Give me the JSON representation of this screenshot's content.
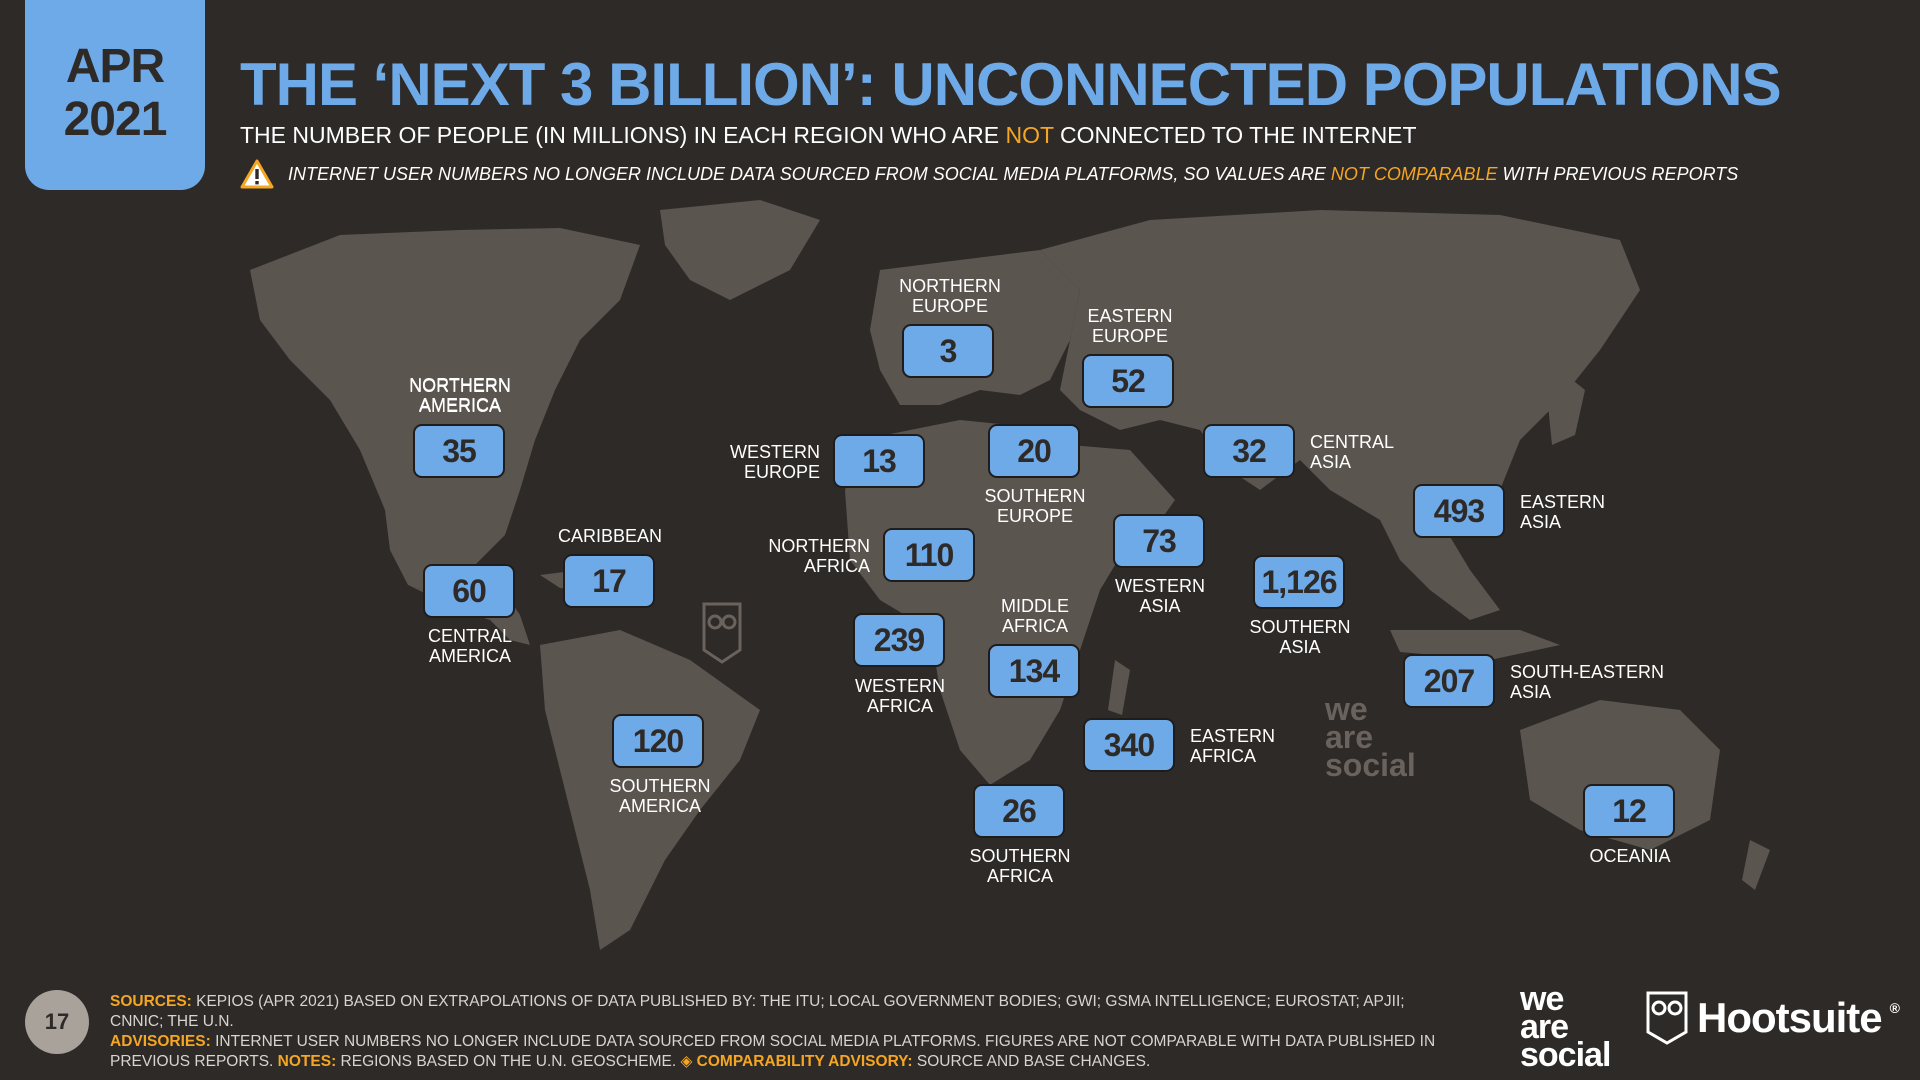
{
  "badge": {
    "month": "APR",
    "year": "2021"
  },
  "title": "THE ‘NEXT 3 BILLION’: UNCONNECTED POPULATIONS",
  "subtitle": {
    "before": "THE NUMBER OF PEOPLE (IN MILLIONS) IN EACH REGION WHO ARE ",
    "highlight": "NOT",
    "after": " CONNECTED TO THE INTERNET"
  },
  "warning": {
    "icon": "warning-triangle-icon",
    "before": "INTERNET USER NUMBERS NO LONGER INCLUDE DATA SOURCED FROM SOCIAL MEDIA PLATFORMS, SO VALUES ARE ",
    "highlight": "NOT COMPARABLE",
    "after": " WITH PREVIOUS REPORTS"
  },
  "regions": {
    "northern_america": {
      "l1": "NORTHERN",
      "l2": "AMERICA",
      "value": "35"
    },
    "central_america": {
      "l1": "CENTRAL",
      "l2": "AMERICA",
      "value": "60"
    },
    "caribbean": {
      "l1": "CARIBBEAN",
      "l2": "",
      "value": "17"
    },
    "southern_america": {
      "l1": "SOUTHERN",
      "l2": "AMERICA",
      "value": "120"
    },
    "northern_europe": {
      "l1": "NORTHERN",
      "l2": "EUROPE",
      "value": "3"
    },
    "western_europe": {
      "l1": "WESTERN",
      "l2": "EUROPE",
      "value": "13"
    },
    "southern_europe": {
      "l1": "SOUTHERN",
      "l2": "EUROPE",
      "value": "20"
    },
    "eastern_europe": {
      "l1": "EASTERN",
      "l2": "EUROPE",
      "value": "52"
    },
    "northern_africa": {
      "l1": "NORTHERN",
      "l2": "AFRICA",
      "value": "110"
    },
    "western_africa": {
      "l1": "WESTERN",
      "l2": "AFRICA",
      "value": "239"
    },
    "middle_africa": {
      "l1": "MIDDLE",
      "l2": "AFRICA",
      "value": "134"
    },
    "eastern_africa": {
      "l1": "EASTERN",
      "l2": "AFRICA",
      "value": "340"
    },
    "southern_africa": {
      "l1": "SOUTHERN",
      "l2": "AFRICA",
      "value": "26"
    },
    "western_asia": {
      "l1": "WESTERN",
      "l2": "ASIA",
      "value": "73"
    },
    "central_asia": {
      "l1": "CENTRAL",
      "l2": "ASIA",
      "value": "32"
    },
    "southern_asia": {
      "l1": "SOUTHERN",
      "l2": "ASIA",
      "value": "1,126"
    },
    "eastern_asia": {
      "l1": "EASTERN",
      "l2": "ASIA",
      "value": "493"
    },
    "south_eastern_asia": {
      "l1": "SOUTH-EASTERN",
      "l2": "ASIA",
      "value": "207"
    },
    "oceania": {
      "l1": "OCEANIA",
      "l2": "",
      "value": "12"
    }
  },
  "watermarks": {
    "we_are_social": [
      "we",
      "are",
      "social"
    ]
  },
  "page_number": "17",
  "footer": {
    "sources_key": "SOURCES:",
    "sources": " KEPIOS (APR 2021) BASED ON EXTRAPOLATIONS OF DATA PUBLISHED BY: THE ITU; LOCAL GOVERNMENT BODIES; GWI; GSMA INTELLIGENCE; EUROSTAT; APJII; CNNIC; THE U.N. ",
    "advisories_key": "ADVISORIES:",
    "advisories": " INTERNET USER NUMBERS NO LONGER INCLUDE DATA SOURCED FROM SOCIAL MEDIA PLATFORMS. FIGURES ARE NOT COMPARABLE WITH DATA PUBLISHED IN PREVIOUS REPORTS. ",
    "notes_key": "NOTES:",
    "notes": " REGIONS BASED ON THE U.N. GEOSCHEME. ",
    "comparability_key": "◈ COMPARABILITY ADVISORY:",
    "comparability": " SOURCE AND BASE CHANGES."
  },
  "brands": {
    "we_are_social": [
      "we",
      "are",
      "social"
    ],
    "hootsuite": "Hootsuite",
    "registered": "®"
  },
  "colors": {
    "background": "#2e2a27",
    "land": "#5b5550",
    "accent_blue": "#6ea9e8",
    "highlight_orange": "#f5a623"
  }
}
